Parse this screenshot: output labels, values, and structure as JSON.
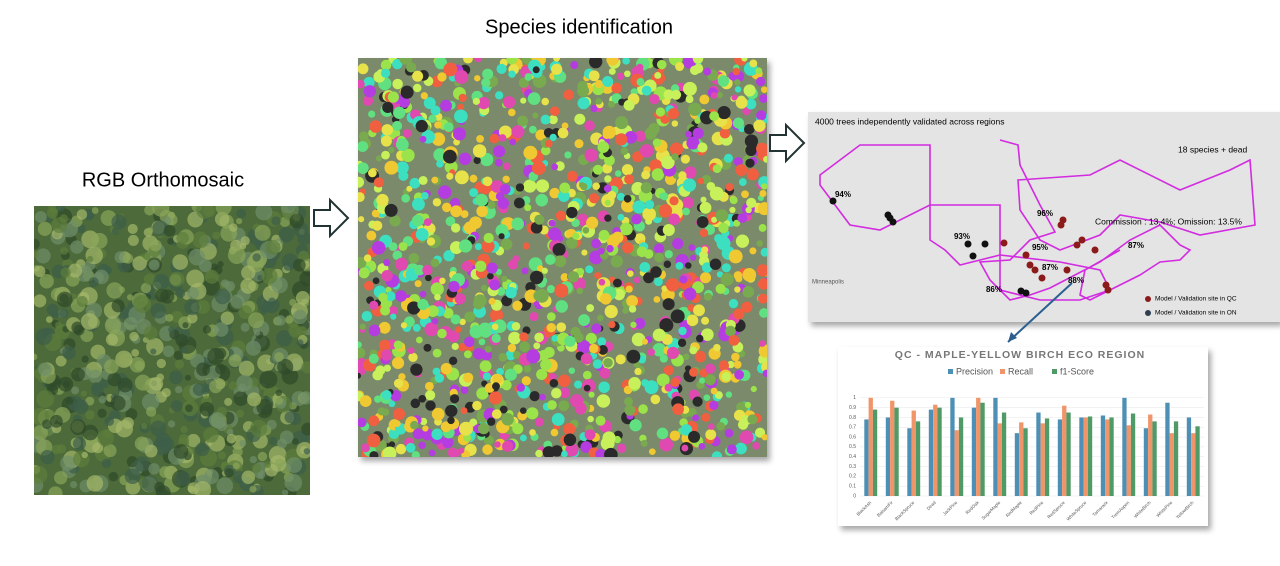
{
  "labels": {
    "rgb": "RGB Orthomosaic",
    "species": "Species identification"
  },
  "map": {
    "heading": "4000 trees independently validated across regions",
    "species_note": "18 species + dead",
    "errors": "Commission : 13.4%; Omission: 13.5%",
    "city": "Minneapolis",
    "accuracies": [
      "94%",
      "93%",
      "96%",
      "95%",
      "87%",
      "88%",
      "87%",
      "86%"
    ],
    "legend": [
      "Model / Validation site in QC",
      "Model / Validation site in ON"
    ]
  },
  "chart_data": {
    "type": "bar",
    "title": "QC - MAPLE-YELLOW BIRCH ECO REGION",
    "categories": [
      "BlackAsh",
      "BalsamFir",
      "BlackSpruce",
      "Dead",
      "JackPine",
      "RedOak",
      "SugarMaple",
      "RedMaple",
      "RedPine",
      "RedSpruce",
      "WhiteSpruce",
      "Tamarack",
      "TremAspen",
      "WhiteBirch",
      "WhitePine",
      "YellowBirch"
    ],
    "series": [
      {
        "name": "Precision",
        "color": "#4e8fb5",
        "values": [
          0.78,
          0.8,
          0.69,
          0.88,
          1.0,
          0.9,
          1.0,
          0.64,
          0.85,
          0.78,
          0.8,
          0.82,
          1.0,
          0.69,
          0.95,
          0.8
        ]
      },
      {
        "name": "Recall",
        "color": "#f0956a",
        "values": [
          1.0,
          0.97,
          0.87,
          0.93,
          0.67,
          1.0,
          0.74,
          0.75,
          0.74,
          0.92,
          0.8,
          0.78,
          0.72,
          0.83,
          0.64,
          0.64
        ]
      },
      {
        "name": "f1-Score",
        "color": "#4f9a66",
        "values": [
          0.88,
          0.9,
          0.76,
          0.9,
          0.8,
          0.95,
          0.85,
          0.69,
          0.79,
          0.85,
          0.81,
          0.8,
          0.84,
          0.76,
          0.76,
          0.71
        ]
      }
    ],
    "ylim": [
      0,
      1.1
    ],
    "yticks": [
      0,
      0.1,
      0.2,
      0.3,
      0.4,
      0.5,
      0.6,
      0.7,
      0.8,
      0.9,
      1
    ],
    "legend": "top"
  }
}
